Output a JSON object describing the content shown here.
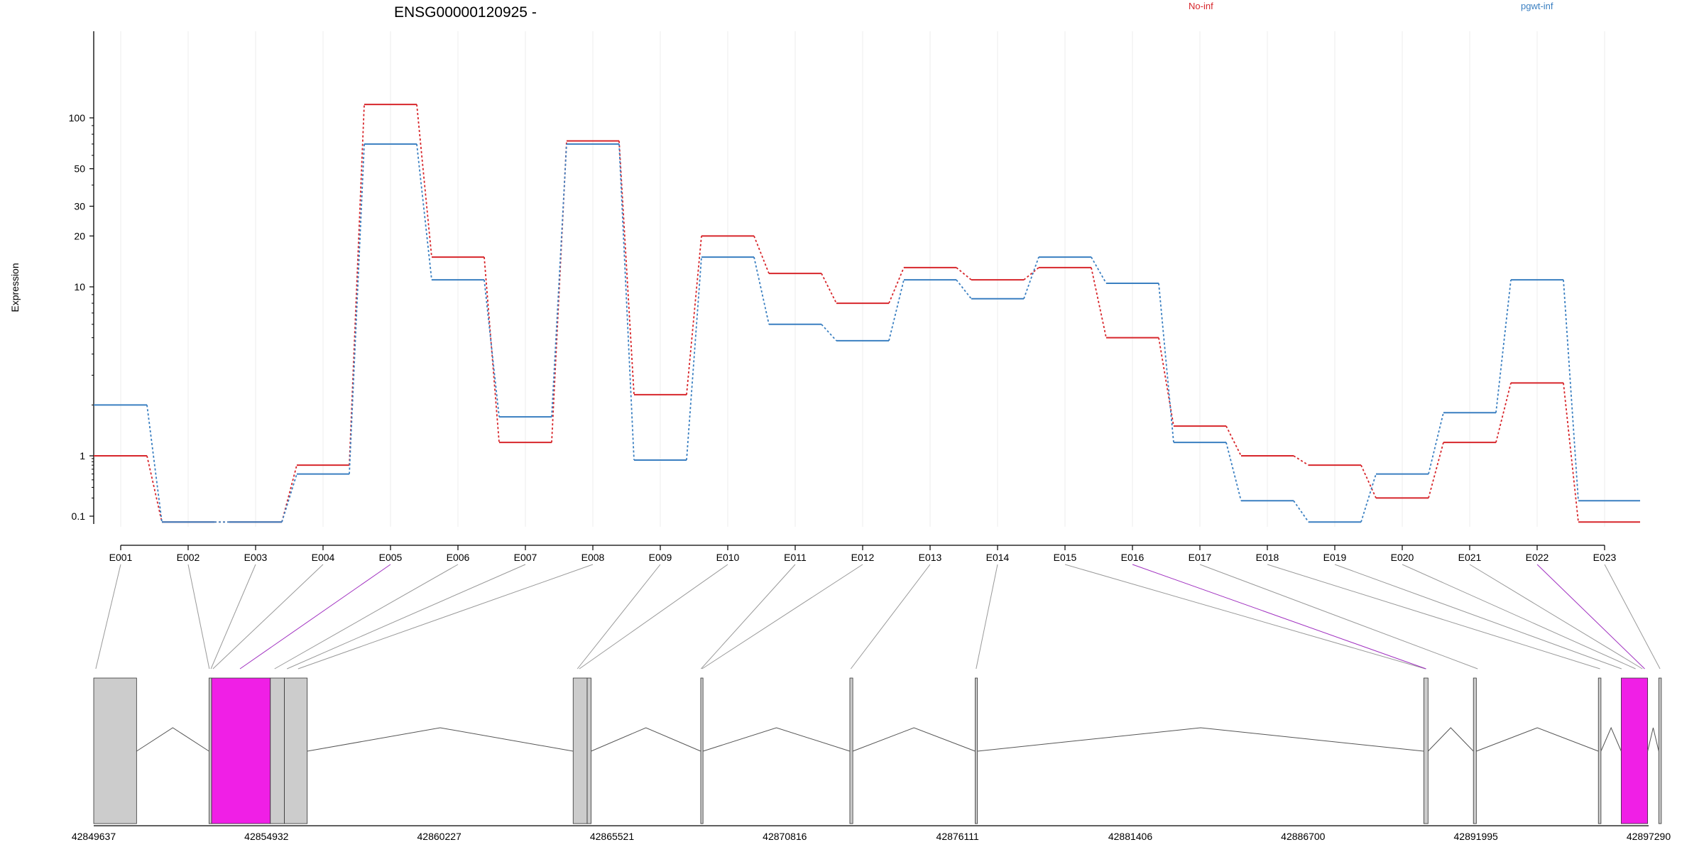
{
  "chart_data": {
    "type": "line",
    "title": "ENSG00000120925 -",
    "ylabel": "Expression",
    "xlabel": "",
    "y_scale": "log",
    "y_ticks": [
      0.1,
      1,
      10,
      20,
      30,
      50,
      100
    ],
    "y_tick_labels": [
      "0.1",
      "1",
      "10",
      "20",
      "30",
      "50",
      "100"
    ],
    "ylim": [
      0.07,
      150
    ],
    "categories": [
      "E001",
      "E002",
      "E003",
      "E004",
      "E005",
      "E006",
      "E007",
      "E008",
      "E009",
      "E010",
      "E011",
      "E012",
      "E013",
      "E014",
      "E015",
      "E016",
      "E017",
      "E018",
      "E019",
      "E020",
      "E021",
      "E022",
      "E023"
    ],
    "series": [
      {
        "name": "No-inf",
        "color": "#d7262b",
        "values": [
          1.0,
          0.08,
          0.08,
          0.7,
          120,
          15,
          1.2,
          73,
          2.3,
          20,
          12,
          8,
          13,
          11,
          13,
          5,
          1.5,
          1.0,
          0.7,
          0.2,
          1.2,
          2.7,
          0.08
        ]
      },
      {
        "name": "pgwt-inf",
        "color": "#3a7fc1",
        "values": [
          2.0,
          0.08,
          0.08,
          0.5,
          70,
          11,
          1.7,
          70,
          0.85,
          15,
          6,
          4.8,
          11,
          8.5,
          15,
          10.5,
          1.2,
          0.18,
          0.08,
          0.5,
          1.8,
          11,
          0.18
        ]
      }
    ],
    "grid": true,
    "legend_placement": "top"
  },
  "gene_model": {
    "coordinate_labels": [
      "42849637",
      "42854932",
      "42860227",
      "42865521",
      "42870816",
      "42876111",
      "42881406",
      "42886700",
      "42891995",
      "42897290"
    ],
    "highlight_color": "#f01fe6",
    "exon_color": "#cccccc",
    "highlighted_exons": [
      "E005",
      "E016",
      "E022"
    ]
  }
}
